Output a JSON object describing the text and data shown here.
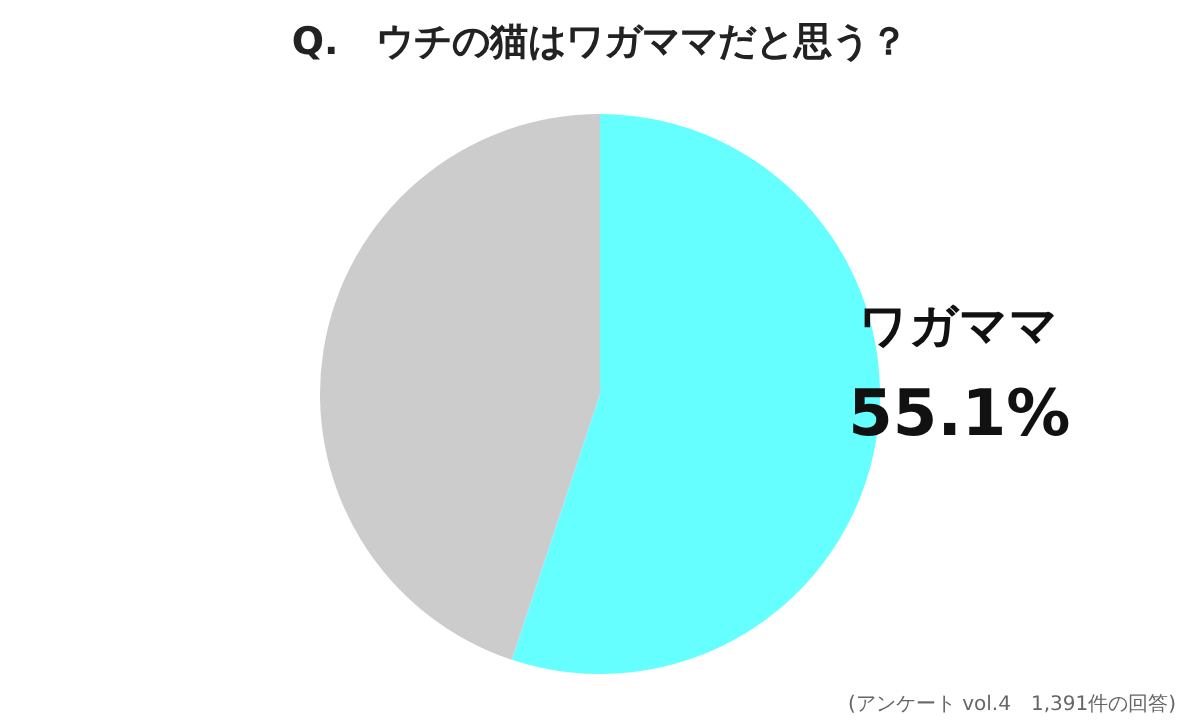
{
  "chart_data": {
    "type": "pie",
    "title": "Q.　ウチの猫はワガママだと思う？",
    "categories": [
      "ワガママ",
      null
    ],
    "values": [
      55.1,
      44.9
    ],
    "colors": [
      "#66ffff",
      "#cccccc"
    ],
    "value_labels": [
      "55.1%",
      null
    ],
    "annotations": [
      "(アンケート vol.4　1,391件の回答)"
    ],
    "legend": false
  }
}
